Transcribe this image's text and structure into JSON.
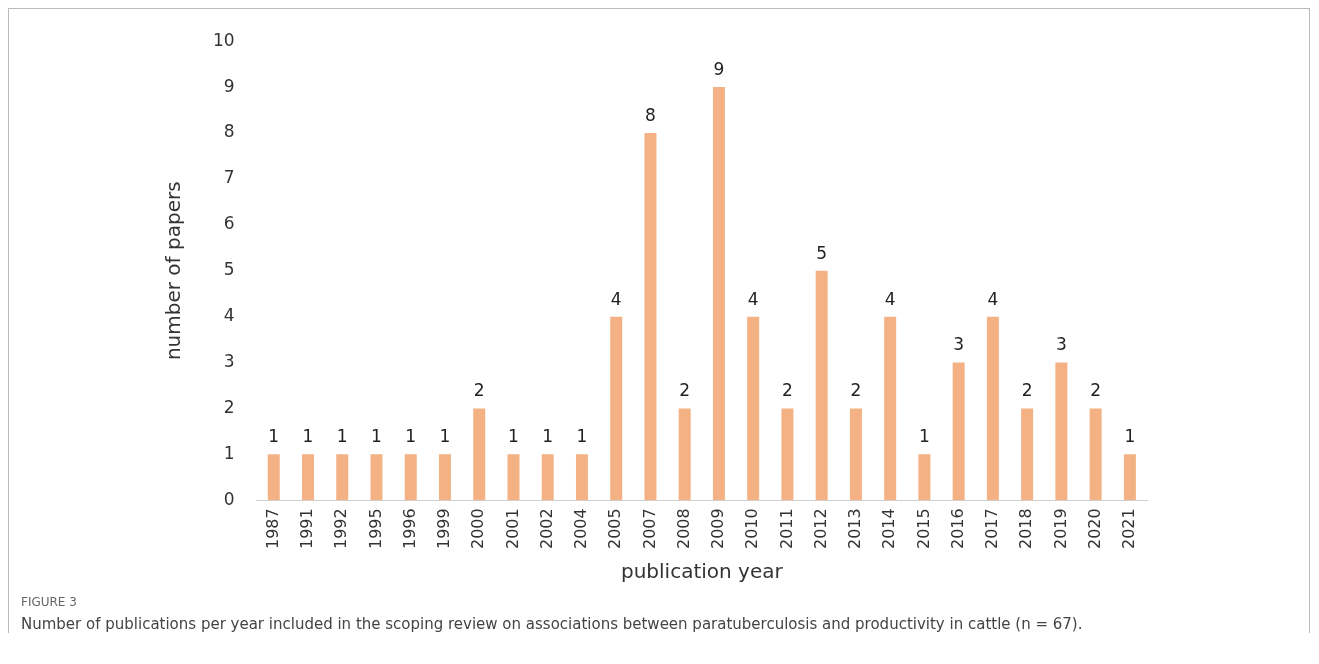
{
  "chart_data": {
    "type": "bar",
    "xlabel": "publication year",
    "ylabel": "number of papers",
    "categories": [
      "1987",
      "1991",
      "1992",
      "1995",
      "1996",
      "1999",
      "2000",
      "2001",
      "2002",
      "2004",
      "2005",
      "2007",
      "2008",
      "2009",
      "2010",
      "2011",
      "2012",
      "2013",
      "2014",
      "2015",
      "2016",
      "2017",
      "2018",
      "2019",
      "2020",
      "2021"
    ],
    "values": [
      1,
      1,
      1,
      1,
      1,
      1,
      2,
      1,
      1,
      1,
      4,
      8,
      2,
      9,
      4,
      2,
      5,
      2,
      4,
      1,
      3,
      4,
      2,
      3,
      2,
      1
    ],
    "color": "#f4b183",
    "ylim": [
      0,
      10
    ],
    "yticks": [
      0,
      1,
      2,
      3,
      4,
      5,
      6,
      7,
      8,
      9,
      10
    ],
    "grid": false,
    "legend": false,
    "data_labels": true,
    "annotations": [
      "FIGURE 3",
      "Number of publications per year included in the scoping review on associations between paratuberculosis and productivity in cattle (n = 67)."
    ]
  }
}
